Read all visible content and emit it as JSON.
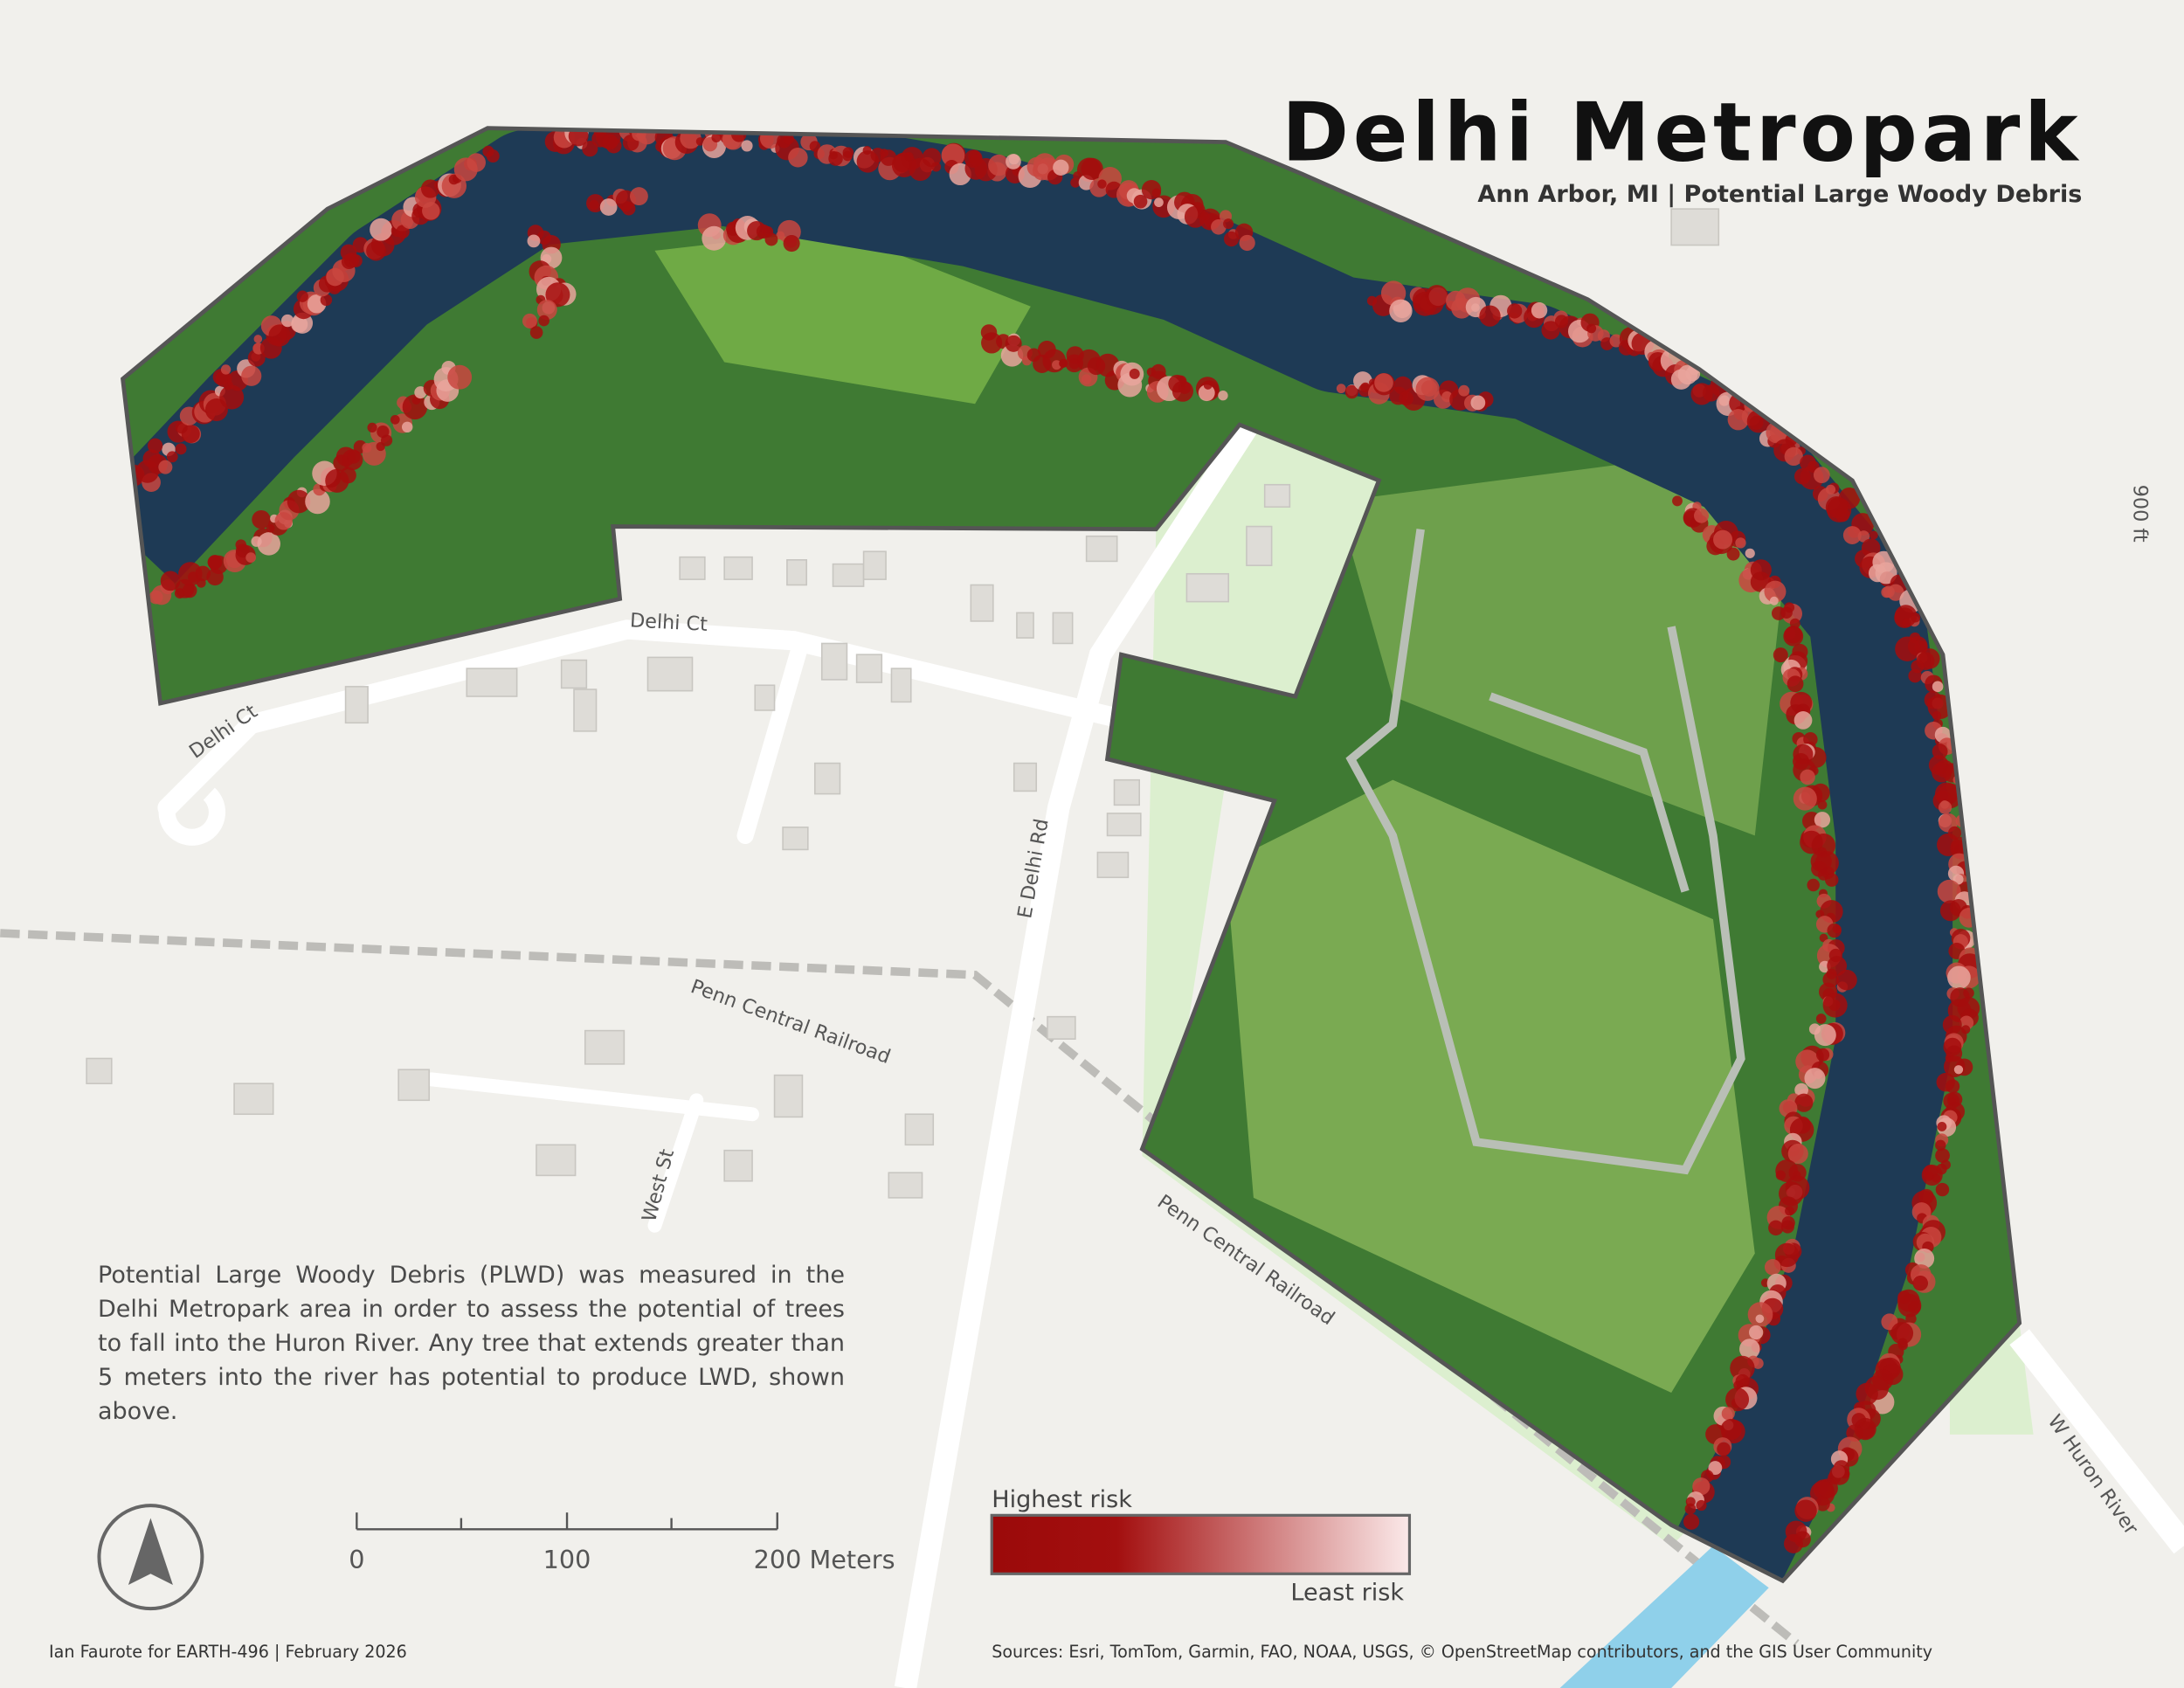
{
  "header": {
    "title": "Delhi Metropark",
    "subtitle": "Ann Arbor, MI | Potential Large Woody Debris"
  },
  "map_labels": [
    "Delhi Ct",
    "Delhi Ct",
    "E Delhi Rd",
    "Penn Central Railroad",
    "Penn Central Railroad",
    "West St",
    "W Huron River",
    "900 ft"
  ],
  "description": "Potential Large Woody Debris (PLWD) was measured in the Delhi Metropark area in order to assess the potential of trees to fall into the Huron River. Any tree that extends greater than 5 meters into the river has potential to produce LWD, shown above.",
  "legend": {
    "high": "Highest risk",
    "low": "Least risk"
  },
  "scale_bar": {
    "labels": [
      "0",
      "100",
      "200 Meters"
    ]
  },
  "footer": {
    "credit": "Ian Faurote for EARTH-496 | February 2026",
    "sources": "Sources:  Esri, TomTom, Garmin, FAO, NOAA, USGS, © OpenStreetMap contributors, and the GIS User Community"
  }
}
